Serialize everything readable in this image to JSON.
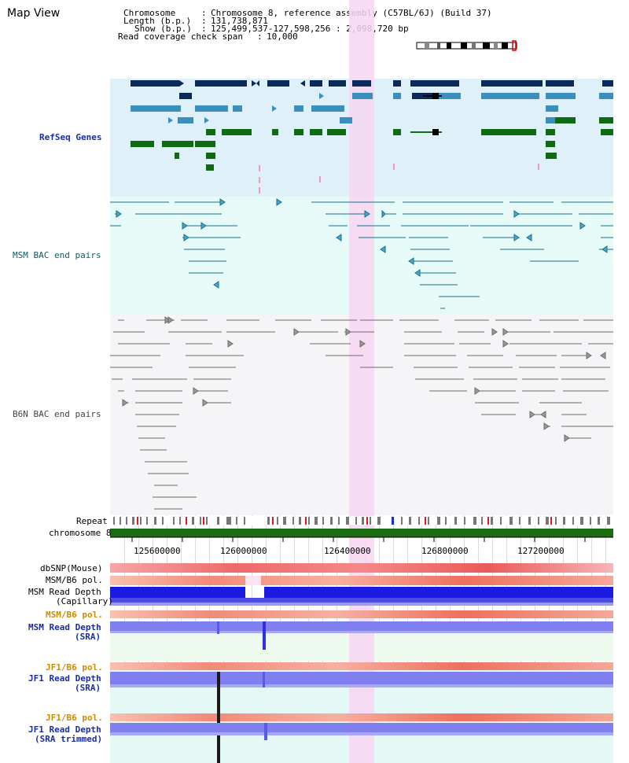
{
  "window": {
    "title": "Map View"
  },
  "info": {
    "chromosome_label": "Chromosome",
    "chromosome_value": "Chromosome 8, reference assembly (C57BL/6J) (Build 37)",
    "length_label": "Length (b.p.)",
    "length_value": "131,738,871",
    "show_label": "Show (b.p.)",
    "show_value": "125,499,537-127,598,256 : 2,098,720 bp",
    "span_label": "Read coverage check span",
    "span_value": "10,000"
  },
  "tracks": {
    "refseq": "RefSeq Genes",
    "msm_bac": "MSM BAC end pairs",
    "b6n_bac": "B6N BAC end pairs",
    "repeat": "Repeat",
    "chromosome": "chromosome 8",
    "dbsnp": "dbSNP(Mouse)",
    "msm_b6_pol_1": "MSM/B6 pol.",
    "msm_depth_cap_1": "MSM Read Depth",
    "msm_depth_cap_2": "(Capillary)",
    "msm_b6_pol_2": "MSM/B6 pol.",
    "msm_depth_sra_1": "MSM Read Depth",
    "msm_depth_sra_2": "(SRA)",
    "jf1_pol_1": "JF1/B6 pol.",
    "jf1_depth_1": "JF1 Read Depth",
    "jf1_depth_2": "(SRA)",
    "jf1_pol_2": "JF1/B6 pol.",
    "jf1_depth_tr_1": "JF1 Read Depth",
    "jf1_depth_tr_2": "(SRA trimmed)"
  },
  "axis": {
    "ticks": [
      "125600000",
      "126000000",
      "126400000",
      "126800000",
      "127200000"
    ]
  },
  "colors": {
    "refseq_bg": "#dff0f9",
    "msm_bg": "#e6fbf8",
    "b6n_bg": "#f5f5f8",
    "gene_navy": "#0a2a5c",
    "gene_blue": "#3b8fbf",
    "gene_green": "#0e6b12",
    "bac_teal": "#1b6e8a",
    "bac_grey": "#6a6a6a",
    "highlight": "#f7d6f2",
    "chromosome_bar": "#1b6b12",
    "depth_blue": "#1a1ae0",
    "depth_light": "#7f7ff0"
  }
}
